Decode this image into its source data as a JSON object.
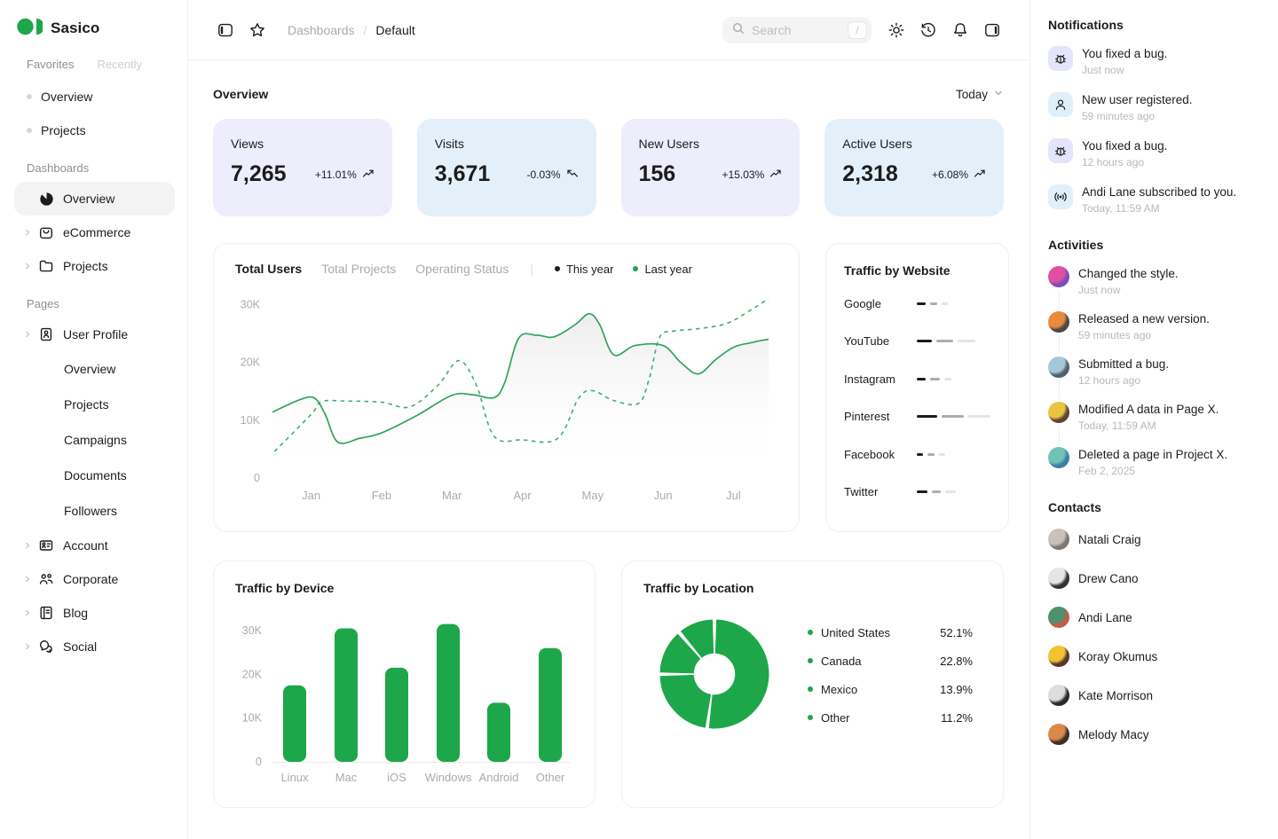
{
  "brand": {
    "name": "Sasico",
    "accent": "#1EA64A"
  },
  "sidebar": {
    "tabs": [
      {
        "label": "Favorites",
        "active": true
      },
      {
        "label": "Recently",
        "active": false
      }
    ],
    "favorites": [
      "Overview",
      "Projects"
    ],
    "sections": [
      {
        "title": "Dashboards",
        "items": [
          {
            "label": "Overview",
            "icon": "pie-chart-icon",
            "active": true,
            "chevron": false
          },
          {
            "label": "eCommerce",
            "icon": "shopping-bag-icon",
            "active": false,
            "chevron": true
          },
          {
            "label": "Projects",
            "icon": "folder-icon",
            "active": false,
            "chevron": true
          }
        ]
      },
      {
        "title": "Pages",
        "items": [
          {
            "label": "User Profile",
            "icon": "id-card-icon",
            "active": false,
            "chevron": true,
            "children": [
              "Overview",
              "Projects",
              "Campaigns",
              "Documents",
              "Followers"
            ]
          },
          {
            "label": "Account",
            "icon": "badge-icon",
            "active": false,
            "chevron": true
          },
          {
            "label": "Corporate",
            "icon": "people-icon",
            "active": false,
            "chevron": true
          },
          {
            "label": "Blog",
            "icon": "notebook-icon",
            "active": false,
            "chevron": true
          },
          {
            "label": "Social",
            "icon": "chat-icon",
            "active": false,
            "chevron": true
          }
        ]
      }
    ]
  },
  "header": {
    "breadcrumbs": [
      "Dashboards",
      "Default"
    ],
    "search": {
      "placeholder": "Search",
      "shortcut": "/"
    }
  },
  "overview": {
    "title": "Overview",
    "period": "Today",
    "cards": [
      {
        "label": "Views",
        "value": "7,265",
        "delta": "+11.01%",
        "trend": "up",
        "bg": "#EDEDFC"
      },
      {
        "label": "Visits",
        "value": "3,671",
        "delta": "-0.03%",
        "trend": "down",
        "bg": "#E3F0FA"
      },
      {
        "label": "New Users",
        "value": "156",
        "delta": "+15.03%",
        "trend": "up",
        "bg": "#EDEDFC"
      },
      {
        "label": "Active Users",
        "value": "2,318",
        "delta": "+6.08%",
        "trend": "up",
        "bg": "#E3F0FA"
      }
    ]
  },
  "chart_data": [
    {
      "id": "total-users",
      "type": "line",
      "tabs": [
        "Total Users",
        "Total Projects",
        "Operating Status"
      ],
      "active_tab": "Total Users",
      "legend": [
        {
          "label": "This year",
          "color": "#1C1C1C"
        },
        {
          "label": "Last year",
          "color": "#1EA64A"
        }
      ],
      "x_ticks": [
        "Jan",
        "Feb",
        "Mar",
        "Apr",
        "May",
        "Jun",
        "Jul"
      ],
      "y_ticks": [
        "0",
        "10K",
        "20K",
        "30K"
      ],
      "ylim": [
        0,
        32500
      ],
      "unit": "K",
      "series": [
        {
          "name": "This year",
          "style": "solid",
          "color": "#2FA45B",
          "fill": true,
          "points": [
            [
              -0.55,
              11.4
            ],
            [
              -0.15,
              13.6
            ],
            [
              0.05,
              13.8
            ],
            [
              0.2,
              11.0
            ],
            [
              0.38,
              6.2
            ],
            [
              0.7,
              6.9
            ],
            [
              1.0,
              7.8
            ],
            [
              1.5,
              10.8
            ],
            [
              2.0,
              14.3
            ],
            [
              2.3,
              14.4
            ],
            [
              2.6,
              13.9
            ],
            [
              2.75,
              16.5
            ],
            [
              2.95,
              24.2
            ],
            [
              3.2,
              24.7
            ],
            [
              3.45,
              24.4
            ],
            [
              3.75,
              26.5
            ],
            [
              3.95,
              28.4
            ],
            [
              4.1,
              26.5
            ],
            [
              4.3,
              21.3
            ],
            [
              4.6,
              22.9
            ],
            [
              5.0,
              22.9
            ],
            [
              5.25,
              20.0
            ],
            [
              5.5,
              18.0
            ],
            [
              5.75,
              20.5
            ],
            [
              6.0,
              22.6
            ],
            [
              6.25,
              23.4
            ],
            [
              6.5,
              24.0
            ]
          ]
        },
        {
          "name": "Last year",
          "style": "dashed",
          "color": "#3FAE6C",
          "fill": false,
          "points": [
            [
              -0.52,
              4.6
            ],
            [
              0.0,
              11.0
            ],
            [
              0.15,
              13.2
            ],
            [
              0.5,
              13.3
            ],
            [
              1.0,
              13.1
            ],
            [
              1.4,
              12.3
            ],
            [
              1.8,
              16.0
            ],
            [
              2.1,
              20.3
            ],
            [
              2.35,
              16.0
            ],
            [
              2.6,
              7.2
            ],
            [
              3.0,
              6.6
            ],
            [
              3.5,
              6.8
            ],
            [
              3.8,
              13.8
            ],
            [
              4.0,
              15.1
            ],
            [
              4.3,
              13.4
            ],
            [
              4.65,
              12.9
            ],
            [
              4.8,
              17.0
            ],
            [
              4.95,
              24.3
            ],
            [
              5.15,
              25.4
            ],
            [
              5.5,
              25.8
            ],
            [
              5.9,
              26.7
            ],
            [
              6.2,
              28.7
            ],
            [
              6.5,
              31.0
            ]
          ]
        }
      ]
    },
    {
      "id": "traffic-by-website",
      "type": "bar",
      "title": "Traffic by Website",
      "segment_colors": [
        "#1C1C1C",
        "#ADADAD",
        "#E4E4E4"
      ],
      "rows": [
        {
          "label": "Google",
          "segments": [
            10,
            8,
            7
          ]
        },
        {
          "label": "YouTube",
          "segments": [
            17,
            19,
            20
          ]
        },
        {
          "label": "Instagram",
          "segments": [
            10,
            11,
            8
          ]
        },
        {
          "label": "Pinterest",
          "segments": [
            23,
            25,
            25
          ]
        },
        {
          "label": "Facebook",
          "segments": [
            7,
            8,
            7
          ]
        },
        {
          "label": "Twitter",
          "segments": [
            12,
            10,
            12
          ]
        }
      ]
    },
    {
      "id": "traffic-by-device",
      "type": "bar",
      "title": "Traffic by Device",
      "categories": [
        "Linux",
        "Mac",
        "iOS",
        "Windows",
        "Android",
        "Other"
      ],
      "values": [
        17.5,
        30.5,
        21.5,
        31.5,
        13.5,
        26
      ],
      "unit": "K",
      "y_ticks": [
        "0",
        "10K",
        "20K",
        "30K"
      ],
      "ylim": [
        0,
        33
      ],
      "bar_color": "#1EA64A"
    },
    {
      "id": "traffic-by-location",
      "type": "donut",
      "title": "Traffic by Location",
      "color": "#1EA64A",
      "slices": [
        {
          "label": "United States",
          "value": 52.1
        },
        {
          "label": "Canada",
          "value": 22.8
        },
        {
          "label": "Mexico",
          "value": 13.9
        },
        {
          "label": "Other",
          "value": 11.2
        }
      ],
      "value_suffix": "%"
    }
  ],
  "right_panel": {
    "notifications": {
      "title": "Notifications",
      "items": [
        {
          "icon": "bug-icon",
          "icon_bg": "#E4E4FC",
          "text": "You fixed a bug.",
          "time": "Just now"
        },
        {
          "icon": "user-icon",
          "icon_bg": "#DFF0FB",
          "text": "New user registered.",
          "time": "59 minutes ago"
        },
        {
          "icon": "bug-icon",
          "icon_bg": "#E4E4FC",
          "text": "You fixed a bug.",
          "time": "12 hours ago"
        },
        {
          "icon": "broadcast-icon",
          "icon_bg": "#DFF0FB",
          "text": "Andi Lane subscribed to you.",
          "time": "Today, 11:59 AM"
        }
      ]
    },
    "activities": {
      "title": "Activities",
      "items": [
        {
          "text": "Changed the style.",
          "time": "Just now",
          "avatar_colors": [
            "#E04FA4",
            "#7C4DB8"
          ]
        },
        {
          "text": "Released a new version.",
          "time": "59 minutes ago",
          "avatar_colors": [
            "#E98A3C",
            "#4A4A4A"
          ]
        },
        {
          "text": "Submitted a bug.",
          "time": "12 hours ago",
          "avatar_colors": [
            "#A8C6DB",
            "#54616C"
          ]
        },
        {
          "text": "Modified A data in Page X.",
          "time": "Today, 11:59 AM",
          "avatar_colors": [
            "#E9C53F",
            "#5E4633"
          ]
        },
        {
          "text": "Deleted a page in Project X.",
          "time": "Feb 2, 2025",
          "avatar_colors": [
            "#6FC2B5",
            "#3E7EA8"
          ]
        }
      ]
    },
    "contacts": {
      "title": "Contacts",
      "items": [
        {
          "name": "Natali Craig",
          "avatar_colors": [
            "#C9C2BA",
            "#7E7870"
          ]
        },
        {
          "name": "Drew Cano",
          "avatar_colors": [
            "#E5E5E5",
            "#333333"
          ]
        },
        {
          "name": "Andi Lane",
          "avatar_colors": [
            "#4E8F6E",
            "#C75B4A"
          ]
        },
        {
          "name": "Koray Okumus",
          "avatar_colors": [
            "#F2C230",
            "#55382B"
          ]
        },
        {
          "name": "Kate Morrison",
          "avatar_colors": [
            "#DDDDDD",
            "#2B2B2B"
          ]
        },
        {
          "name": "Melody Macy",
          "avatar_colors": [
            "#D98A4B",
            "#402E2A"
          ]
        }
      ]
    }
  }
}
